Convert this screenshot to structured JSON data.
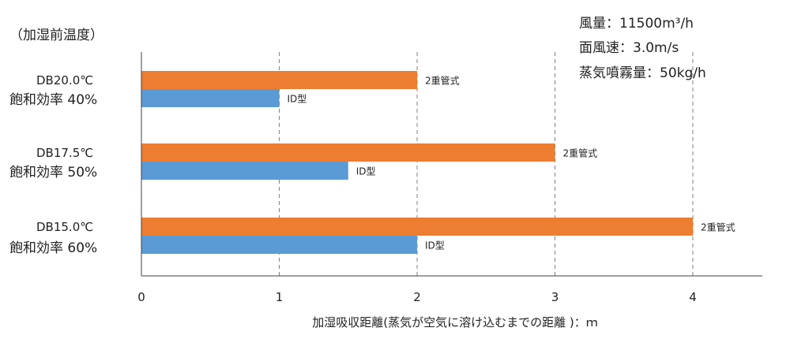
{
  "chart_data": {
    "type": "bar",
    "orientation": "horizontal",
    "y_group_title": "（加湿前温度）",
    "categories": [
      {
        "line1": "DB20.0℃",
        "line2": "飽和効率  40%"
      },
      {
        "line1": "DB17.5℃",
        "line2": "飽和効率  50%"
      },
      {
        "line1": "DB15.0℃",
        "line2": "飽和効率  60%"
      }
    ],
    "series": [
      {
        "name": "2重管式",
        "color": "#ED7D31",
        "values": [
          2,
          3,
          4
        ]
      },
      {
        "name": "ID型",
        "color": "#5B9BD5",
        "values": [
          1,
          1.5,
          2
        ]
      }
    ],
    "xlabel": "加湿吸収距離(蒸気が空気に溶け込むまでの距離 )：ｍ",
    "xlim": [
      0,
      4.5
    ],
    "xticks": [
      "0",
      "1",
      "2",
      "3",
      "4"
    ],
    "grid": "vertical-dashed",
    "legend": "none (series names shown as data labels)",
    "annotations": [
      "風量：11500m³/h",
      "面風速：3.0m/s",
      "蒸気噴霧量：50kg/h"
    ]
  }
}
